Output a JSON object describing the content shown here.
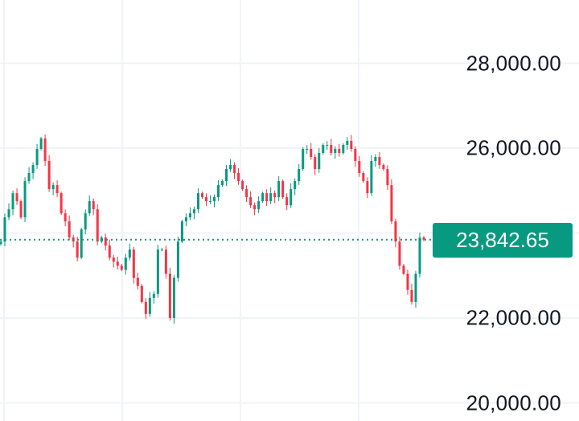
{
  "chart_data": {
    "type": "candlestick",
    "title": "",
    "xlabel": "",
    "ylabel": "",
    "ylim": [
      19900,
      29900
    ],
    "y_ticks": [
      "28,000.00",
      "26,000.00",
      "22,000.00",
      "20,000.00"
    ],
    "y_tick_values": [
      28000,
      26000,
      22000,
      20000
    ],
    "grid": true,
    "last_price": 23842.65,
    "last_price_label": "23,842.65",
    "colors": {
      "up": "#089981",
      "down": "#f23645",
      "grid": "#f0f3fa",
      "price_line": "#089981",
      "text": "#131722"
    },
    "closes": [
      23801,
      24370,
      24560,
      24938,
      24749,
      24370,
      25223,
      25413,
      25602,
      25981,
      26228,
      25697,
      25033,
      25128,
      24938,
      24465,
      24275,
      23896,
      23801,
      23422,
      24085,
      24465,
      24749,
      24560,
      23801,
      23896,
      23706,
      23422,
      23327,
      23232,
      23137,
      23422,
      23611,
      22948,
      22758,
      22379,
      22094,
      22474,
      22569,
      23611,
      23611,
      23043,
      22000,
      22948,
      23801,
      24275,
      24370,
      24465,
      24560,
      24938,
      24844,
      24749,
      24749,
      24844,
      25128,
      25223,
      25507,
      25602,
      25413,
      25223,
      25033,
      24844,
      24654,
      24560,
      24749,
      24938,
      24749,
      24938,
      24844,
      25223,
      24844,
      24654,
      25033,
      25223,
      25507,
      25981,
      25981,
      25792,
      25507,
      25886,
      26076,
      26076,
      25886,
      25981,
      25886,
      26076,
      26171,
      25981,
      25697,
      25413,
      25223,
      24938,
      25697,
      25792,
      25602,
      25507,
      25128,
      24275,
      23801,
      23232,
      23043,
      22663,
      22379,
      23043,
      23896,
      23842.65
    ]
  }
}
